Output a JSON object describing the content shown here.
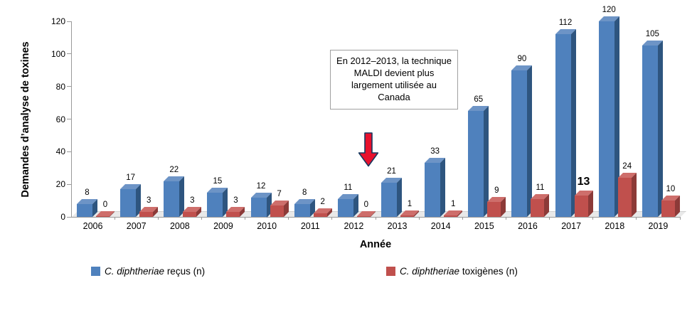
{
  "chart_data": {
    "type": "bar",
    "style": "3d-column",
    "title": "",
    "xlabel": "Année",
    "ylabel": "Demandes d’analyse de toxines",
    "categories": [
      "2006",
      "2007",
      "2008",
      "2009",
      "2010",
      "2011",
      "2012",
      "2013",
      "2014",
      "2015",
      "2016",
      "2017",
      "2018",
      "2019"
    ],
    "series": [
      {
        "name_italic": "C. diphtheriae",
        "name_rest": " reçus (n)",
        "color": "#4F81BD",
        "color_side": "#2E557F",
        "color_top": "#6D94C6",
        "values": [
          8,
          17,
          22,
          15,
          12,
          8,
          11,
          21,
          33,
          65,
          90,
          112,
          120,
          105
        ]
      },
      {
        "name_italic": "C. diphtheriae",
        "name_rest": " toxigènes (n)",
        "color": "#C0504D",
        "color_side": "#8C3A38",
        "color_top": "#CE6E6B",
        "values": [
          0,
          3,
          3,
          3,
          7,
          2,
          0,
          1,
          1,
          9,
          11,
          13,
          24,
          10
        ]
      }
    ],
    "ylim": [
      0,
      120
    ],
    "ytick_step": 20,
    "grid": false,
    "legend_position": "bottom",
    "annotation": {
      "text": "En 2012–2013, la technique MALDI devient plus largement utilisée au Canada",
      "arrow_color": "#E8112D",
      "arrow_outline": "#17375E"
    },
    "emphasized_label": {
      "series": 1,
      "category": "2017",
      "value": 13
    }
  }
}
